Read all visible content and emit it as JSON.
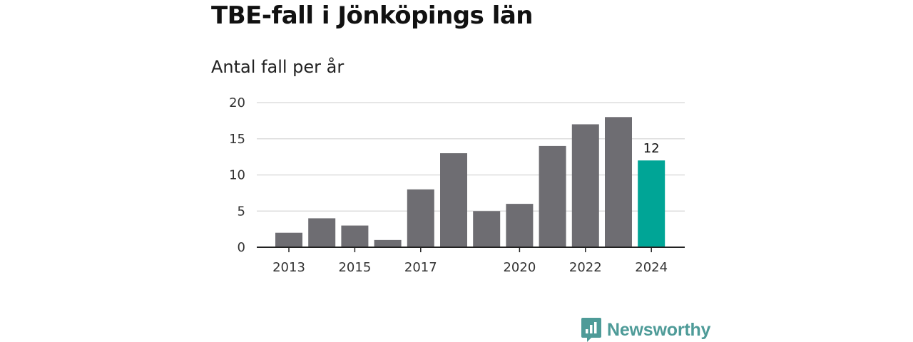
{
  "title": "TBE-fall i Jönköpings län",
  "subtitle": "Antal fall per år",
  "brand": {
    "name": "Newsworthy",
    "color": "#4e9b98",
    "icon": "newsworthy-logo-icon"
  },
  "colors": {
    "bar": "#6e6d72",
    "highlight": "#00a596",
    "grid": "#dddddd",
    "axis": "#222222"
  },
  "chart_data": {
    "type": "bar",
    "title": "TBE-fall i Jönköpings län",
    "subtitle": "Antal fall per år",
    "xlabel": "",
    "ylabel": "",
    "categories": [
      2013,
      2014,
      2015,
      2016,
      2017,
      2018,
      2019,
      2020,
      2021,
      2022,
      2023,
      2024
    ],
    "values": [
      2,
      4,
      3,
      1,
      8,
      13,
      5,
      6,
      14,
      17,
      18,
      12
    ],
    "ylim": [
      0,
      20
    ],
    "yticks": [
      0,
      5,
      10,
      15,
      20
    ],
    "xticks": [
      2013,
      2015,
      2017,
      2020,
      2022,
      2024
    ],
    "highlight": {
      "category": 2024,
      "label": "12"
    },
    "grid": true,
    "legend": "none"
  }
}
